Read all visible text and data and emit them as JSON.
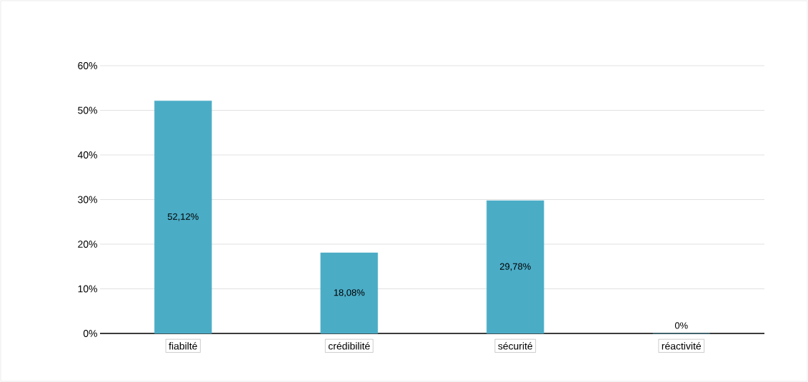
{
  "chart_data": {
    "type": "bar",
    "categories": [
      "fiabilté",
      "crédibilité",
      "sécurité",
      "réactivité"
    ],
    "values": [
      52.12,
      18.08,
      29.78,
      0
    ],
    "value_labels": [
      "52,12%",
      "18,08%",
      "29,78%",
      "0%"
    ],
    "color": "#4bacc6",
    "ylim": [
      0,
      60
    ],
    "yticks": [
      {
        "value": 0,
        "label": "0%"
      },
      {
        "value": 10,
        "label": "10%"
      },
      {
        "value": 20,
        "label": "20%"
      },
      {
        "value": 30,
        "label": "30%"
      },
      {
        "value": 40,
        "label": "40%"
      },
      {
        "value": 50,
        "label": "50%"
      },
      {
        "value": 60,
        "label": "60%"
      }
    ],
    "grid": "y"
  }
}
